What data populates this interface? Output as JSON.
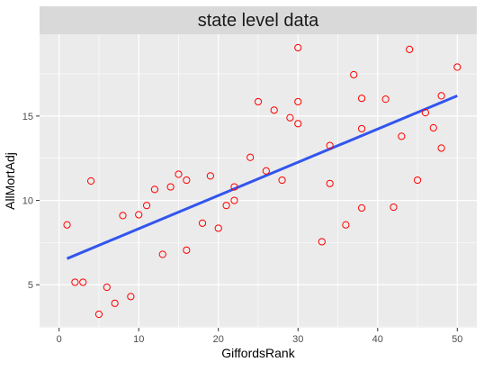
{
  "chart_data": {
    "type": "scatter",
    "title": "state level data",
    "xlabel": "GiffordsRank",
    "ylabel": "AllMortAdj",
    "xlim": [
      -2.45,
      52.45
    ],
    "ylim": [
      2.45,
      19.85
    ],
    "x_ticks": [
      0,
      10,
      20,
      30,
      40,
      50
    ],
    "y_ticks": [
      5,
      10,
      15
    ],
    "grid": true,
    "legend": "none",
    "colors": {
      "panel_bg": "#EBEBEB",
      "strip_bg": "#D9D9D9",
      "grid_major": "#FFFFFF",
      "point": "#FF0000",
      "trend": "#3355EE",
      "axis_text": "#4D4D4D"
    },
    "points": [
      {
        "x": 1,
        "y": 8.55
      },
      {
        "x": 2,
        "y": 5.15
      },
      {
        "x": 3,
        "y": 5.15
      },
      {
        "x": 4,
        "y": 11.15
      },
      {
        "x": 5,
        "y": 3.25
      },
      {
        "x": 6,
        "y": 4.85
      },
      {
        "x": 7,
        "y": 3.9
      },
      {
        "x": 8,
        "y": 9.1
      },
      {
        "x": 9,
        "y": 4.3
      },
      {
        "x": 10,
        "y": 9.15
      },
      {
        "x": 11,
        "y": 9.7
      },
      {
        "x": 12,
        "y": 10.65
      },
      {
        "x": 13,
        "y": 6.8
      },
      {
        "x": 14,
        "y": 10.8
      },
      {
        "x": 15,
        "y": 11.55
      },
      {
        "x": 16,
        "y": 11.2
      },
      {
        "x": 16,
        "y": 7.05
      },
      {
        "x": 18,
        "y": 8.65
      },
      {
        "x": 19,
        "y": 11.45
      },
      {
        "x": 20,
        "y": 8.35
      },
      {
        "x": 21,
        "y": 9.7
      },
      {
        "x": 22,
        "y": 10.8
      },
      {
        "x": 22,
        "y": 10.0
      },
      {
        "x": 24,
        "y": 12.55
      },
      {
        "x": 25,
        "y": 15.85
      },
      {
        "x": 26,
        "y": 11.75
      },
      {
        "x": 27,
        "y": 15.35
      },
      {
        "x": 28,
        "y": 11.2
      },
      {
        "x": 29,
        "y": 14.9
      },
      {
        "x": 30,
        "y": 19.05
      },
      {
        "x": 30,
        "y": 15.85
      },
      {
        "x": 30,
        "y": 14.55
      },
      {
        "x": 33,
        "y": 7.55
      },
      {
        "x": 34,
        "y": 13.25
      },
      {
        "x": 34,
        "y": 11.0
      },
      {
        "x": 36,
        "y": 8.55
      },
      {
        "x": 37,
        "y": 17.45
      },
      {
        "x": 38,
        "y": 16.05
      },
      {
        "x": 38,
        "y": 14.25
      },
      {
        "x": 38,
        "y": 9.55
      },
      {
        "x": 41,
        "y": 16.0
      },
      {
        "x": 42,
        "y": 9.6
      },
      {
        "x": 43,
        "y": 13.8
      },
      {
        "x": 44,
        "y": 18.95
      },
      {
        "x": 45,
        "y": 11.2
      },
      {
        "x": 46,
        "y": 15.2
      },
      {
        "x": 47,
        "y": 14.3
      },
      {
        "x": 48,
        "y": 16.2
      },
      {
        "x": 48,
        "y": 13.1
      },
      {
        "x": 50,
        "y": 17.9
      }
    ],
    "trend_line": {
      "x": [
        1,
        50
      ],
      "y": [
        6.55,
        16.2
      ]
    }
  }
}
